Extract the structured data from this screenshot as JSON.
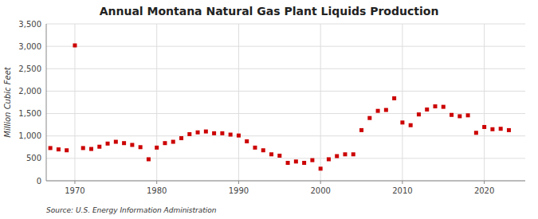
{
  "chart_data": {
    "type": "scatter",
    "title": "Annual Montana Natural Gas Plant Liquids Production",
    "ylabel": "Million Cubic Feet",
    "annotations": [
      "Source: U.S. Energy Information Administration"
    ],
    "color": "#cc0000",
    "marker": "square",
    "grid": true,
    "xlim": [
      1966.5,
      2025
    ],
    "xticks": [
      1970,
      1980,
      1990,
      2000,
      2010,
      2020
    ],
    "ylim": [
      0,
      3500
    ],
    "yticks": [
      0,
      500,
      {
        "value": 1000,
        "label": "1,000"
      },
      {
        "value": 1500,
        "label": "1,500"
      },
      {
        "value": 2000,
        "label": "2,000"
      },
      {
        "value": 2500,
        "label": "2,500"
      },
      {
        "value": 3000,
        "label": "3,000"
      },
      {
        "value": 3500,
        "label": "3,500"
      }
    ],
    "x": [
      1967,
      1968,
      1969,
      1970,
      1971,
      1972,
      1973,
      1974,
      1975,
      1976,
      1977,
      1978,
      1979,
      1980,
      1981,
      1982,
      1983,
      1984,
      1985,
      1986,
      1987,
      1988,
      1989,
      1990,
      1991,
      1992,
      1993,
      1994,
      1995,
      1996,
      1997,
      1998,
      1999,
      2000,
      2001,
      2002,
      2003,
      2004,
      2005,
      2006,
      2007,
      2008,
      2009,
      2010,
      2011,
      2012,
      2013,
      2014,
      2015,
      2016,
      2017,
      2018,
      2019,
      2020,
      2021,
      2022,
      2023
    ],
    "values": [
      730,
      700,
      680,
      3020,
      730,
      710,
      760,
      830,
      870,
      840,
      800,
      750,
      480,
      740,
      840,
      870,
      950,
      1040,
      1080,
      1100,
      1060,
      1060,
      1030,
      1010,
      880,
      740,
      680,
      590,
      560,
      400,
      430,
      400,
      460,
      270,
      480,
      550,
      590,
      590,
      1130,
      1400,
      1560,
      1580,
      1840,
      1300,
      1240,
      1480,
      1590,
      1660,
      1650,
      1470,
      1440,
      1460,
      1070,
      1200,
      1150,
      1160,
      1130
    ]
  }
}
